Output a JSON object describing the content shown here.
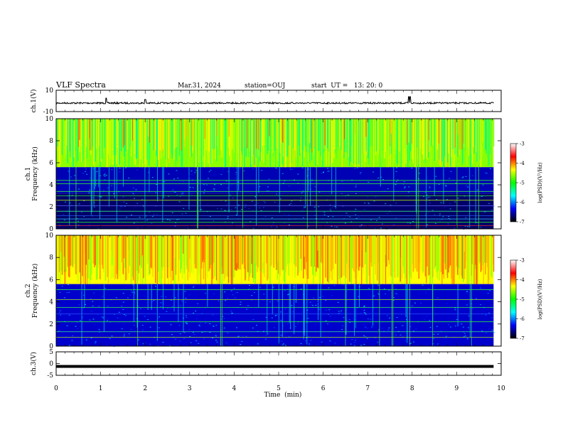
{
  "header": {
    "title": "VLF Spectra",
    "date": "Mar.31, 2024",
    "station": "station=OUJ",
    "start": "start  UT =   13: 20: 0"
  },
  "colorbar": {
    "label": "log(PSD)(V²/Hz)",
    "ticks": [
      "-3",
      "-4",
      "-5",
      "-6",
      "-7"
    ],
    "colors": [
      "#ffffff",
      "#ff0000",
      "#ffff00",
      "#00ff00",
      "#00ffff",
      "#0000ff",
      "#000000"
    ]
  },
  "chart_data": [
    {
      "type": "line",
      "panel": "ch1-waveform",
      "ylabel": "ch.1(V)",
      "ylim": [
        -10,
        10
      ],
      "yticks": [
        "10",
        "-10"
      ],
      "x_range_min": [
        0,
        10
      ],
      "description_values": "noise around -2 V with spikes near 1.1, 2.0, 7.9 min",
      "baseline": -2
    },
    {
      "type": "heatmap",
      "panel": "ch1-spectrogram",
      "ylabel": "ch.1\nFrequency (kHz)",
      "ylim": [
        0,
        10
      ],
      "yticks": [
        "0",
        "2",
        "4",
        "6",
        "8",
        "10"
      ],
      "bands": [
        {
          "f_from": 5.6,
          "f_to": 10,
          "level": -4.5
        },
        {
          "f_from": 3.2,
          "f_to": 5.6,
          "level": -6.3
        },
        {
          "f_from": 0,
          "f_to": 3.2,
          "level": -6.6
        }
      ]
    },
    {
      "type": "heatmap",
      "panel": "ch2-spectrogram",
      "ylabel": "ch.2\nFrequency (kHz)",
      "ylim": [
        0,
        10
      ],
      "yticks": [
        "0",
        "2",
        "4",
        "6",
        "8",
        "10"
      ],
      "bands": [
        {
          "f_from": 5.6,
          "f_to": 10,
          "level": -4.0
        },
        {
          "f_from": 0,
          "f_to": 5.6,
          "level": -6.2
        }
      ]
    },
    {
      "type": "line",
      "panel": "ch3-waveform",
      "ylabel": "ch.3(V)",
      "ylim": [
        -5,
        5
      ],
      "yticks": [
        "5",
        "0",
        "-5"
      ],
      "baseline": -1.2
    }
  ],
  "xaxis": {
    "label": "Time  (min)",
    "ticks": [
      "0",
      "1",
      "2",
      "3",
      "4",
      "5",
      "6",
      "7",
      "8",
      "9",
      "10"
    ],
    "range": [
      0,
      10
    ],
    "data_end": 9.83
  }
}
